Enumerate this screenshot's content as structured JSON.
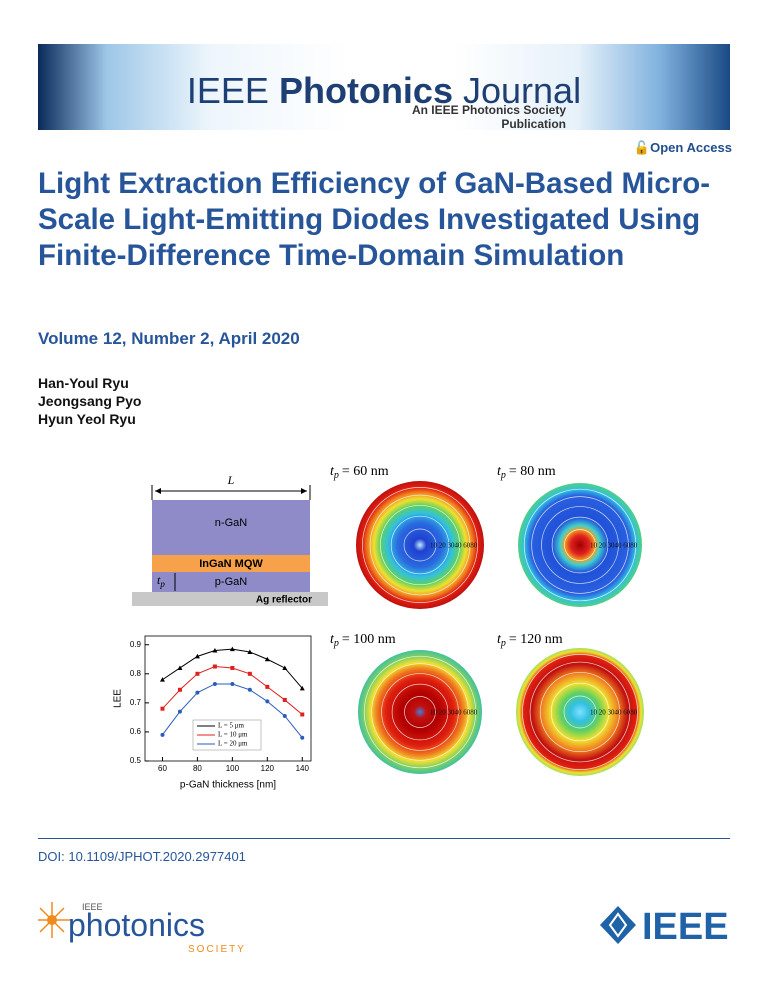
{
  "header": {
    "journal_prefix": "IEEE",
    "journal_bold": "Photonics",
    "journal_suffix": "Journal",
    "tagline": "An IEEE Photonics Society Publication"
  },
  "open_access": "Open Access",
  "title": "Light Extraction Efficiency of GaN-Based Micro-Scale Light-Emitting Diodes Investigated Using Finite-Difference Time-Domain Simulation",
  "volume": "Volume 12, Number 2, April 2020",
  "authors": [
    "Han-Youl Ryu",
    "Jeongsang Pyo",
    "Hyun Yeol Ryu"
  ],
  "figure": {
    "structure": {
      "width_label": "L",
      "layers": [
        "n-GaN",
        "InGaN MQW",
        "p-GaN"
      ],
      "thickness_label": "t",
      "thickness_sub": "p",
      "reflector": "Ag reflector"
    },
    "contours": [
      {
        "var": "t",
        "sub": "p",
        "text": "= 60 nm",
        "ring_labels": "10 20 3040 6080"
      },
      {
        "var": "t",
        "sub": "p",
        "text": "= 80 nm",
        "ring_labels": "10 20 3040 6080"
      },
      {
        "var": "t",
        "sub": "p",
        "text": "= 100 nm",
        "ring_labels": "10 20 3040 6080"
      },
      {
        "var": "t",
        "sub": "p",
        "text": "= 120 nm",
        "ring_labels": "10 20 3040 6080"
      }
    ]
  },
  "chart_data": {
    "type": "line",
    "x_label": "p-GaN thickness [nm]",
    "y_label": "LEE",
    "x": [
      60,
      70,
      80,
      90,
      100,
      110,
      120,
      130,
      140
    ],
    "series": [
      {
        "name": "L = 5 μm",
        "color": "#000000",
        "marker": "triangle",
        "values": [
          0.78,
          0.82,
          0.86,
          0.88,
          0.885,
          0.875,
          0.85,
          0.82,
          0.75
        ]
      },
      {
        "name": "L = 10 μm",
        "color": "#e0201c",
        "marker": "square",
        "values": [
          0.68,
          0.745,
          0.8,
          0.825,
          0.82,
          0.8,
          0.755,
          0.71,
          0.66
        ]
      },
      {
        "name": "L = 20 μm",
        "color": "#2a5cb8",
        "marker": "circle",
        "values": [
          0.59,
          0.67,
          0.735,
          0.765,
          0.765,
          0.745,
          0.705,
          0.655,
          0.58
        ]
      }
    ],
    "xlim": [
      50,
      145
    ],
    "ylim": [
      0.5,
      0.93
    ],
    "xticks": [
      60,
      80,
      100,
      120,
      140
    ],
    "yticks": [
      0.5,
      0.6,
      0.7,
      0.8,
      0.9
    ]
  },
  "doi": "DOI: 10.1109/JPHOT.2020.2977401",
  "footer": {
    "society_top": "IEEE",
    "society_name": "photonics",
    "society_bottom": "SOCIETY",
    "ieee": "IEEE"
  }
}
